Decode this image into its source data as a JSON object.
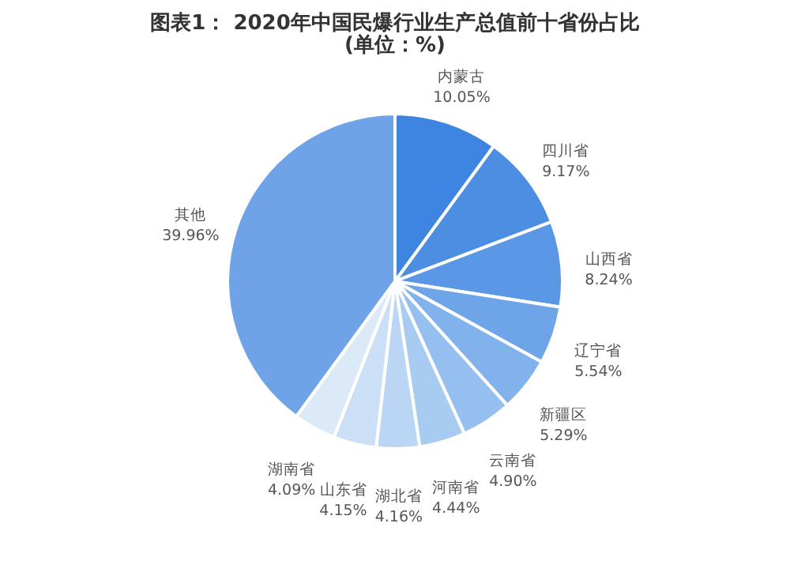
{
  "chart_data": {
    "type": "pie",
    "title": "图表1： 2020年中国民爆行业生产总值前十省份占比",
    "subtitle": "(单位：%)",
    "categories": [
      "内蒙古",
      "四川省",
      "山西省",
      "辽宁省",
      "新疆区",
      "云南省",
      "河南省",
      "湖北省",
      "山东省",
      "湖南省",
      "其他"
    ],
    "values": [
      10.05,
      9.17,
      8.24,
      5.54,
      5.29,
      4.9,
      4.44,
      4.16,
      4.15,
      4.09,
      39.96
    ],
    "colors": [
      "#3d85e0",
      "#4b8ee2",
      "#5a98e5",
      "#6ea5e8",
      "#82b2eb",
      "#95bfee",
      "#a8cbf1",
      "#bad6f4",
      "#cbe0f6",
      "#dbe9f8",
      "#6fa3e8"
    ],
    "value_labels": [
      "10.05%",
      "9.17%",
      "8.24%",
      "5.54%",
      "5.29%",
      "4.90%",
      "4.44%",
      "4.16%",
      "4.15%",
      "4.09%",
      "39.96%"
    ],
    "legend": false
  }
}
